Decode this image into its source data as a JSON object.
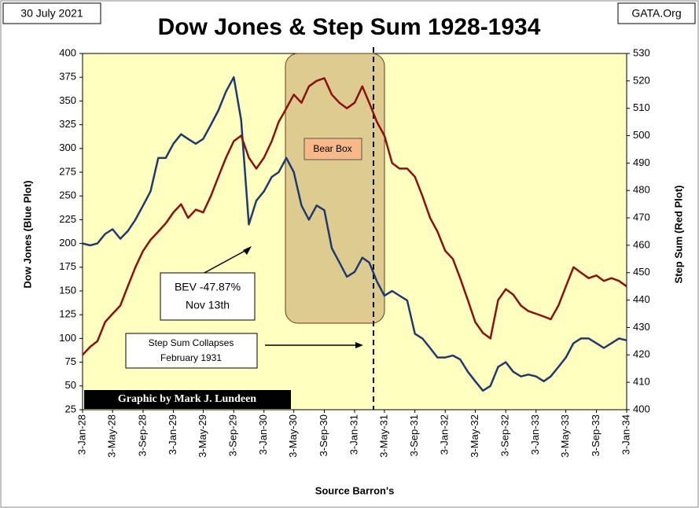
{
  "date_label": "30 July 2021",
  "source_site": "GATA.Org",
  "chart_data": {
    "type": "line",
    "title": "Dow Jones & Step Sum 1928-1934",
    "ylabel": "Dow Jones   (Blue Plot)",
    "y2label": "Step Sum   (Red Plot)",
    "xlabel": "Source Barron's",
    "credit": "Graphic by Mark J. Lundeen",
    "annotations": {
      "box": "Bear Box",
      "bev": "BEV -47.87%",
      "bev_date": "Nov 13th",
      "collapse": "Step Sum Collapses",
      "collapse_date": "February 1931"
    },
    "xlim": [
      "1928-01-03",
      "1934-01-03"
    ],
    "xticks": [
      {
        "value": "1928-01-03",
        "label": "3-Jan-28"
      },
      {
        "value": "1928-05-03",
        "label": "3-May-28"
      },
      {
        "value": "1928-09-03",
        "label": "3-Sep-28"
      },
      {
        "value": "1929-01-03",
        "label": "3-Jan-29"
      },
      {
        "value": "1929-05-03",
        "label": "3-May-29"
      },
      {
        "value": "1929-09-03",
        "label": "3-Sep-29"
      },
      {
        "value": "1930-01-03",
        "label": "3-Jan-30"
      },
      {
        "value": "1930-05-03",
        "label": "3-May-30"
      },
      {
        "value": "1930-09-03",
        "label": "3-Sep-30"
      },
      {
        "value": "1931-01-03",
        "label": "3-Jan-31"
      },
      {
        "value": "1931-05-03",
        "label": "3-May-31"
      },
      {
        "value": "1931-09-03",
        "label": "3-Sep-31"
      },
      {
        "value": "1932-01-03",
        "label": "3-Jan-32"
      },
      {
        "value": "1932-05-03",
        "label": "3-May-32"
      },
      {
        "value": "1932-09-03",
        "label": "3-Sep-32"
      },
      {
        "value": "1933-01-03",
        "label": "3-Jan-33"
      },
      {
        "value": "1933-05-03",
        "label": "3-May-33"
      },
      {
        "value": "1933-09-03",
        "label": "3-Sep-33"
      },
      {
        "value": "1934-01-03",
        "label": "3-Jan-34"
      }
    ],
    "ylim": [
      25,
      400
    ],
    "yticks": [
      25,
      50,
      75,
      100,
      125,
      150,
      175,
      200,
      225,
      250,
      275,
      300,
      325,
      350,
      375,
      400
    ],
    "y2lim": [
      400,
      530
    ],
    "y2ticks": [
      400,
      410,
      420,
      430,
      440,
      450,
      460,
      470,
      480,
      490,
      500,
      510,
      520,
      530
    ],
    "x": [
      "1928-01-03",
      "1928-02-03",
      "1928-03-03",
      "1928-04-03",
      "1928-05-03",
      "1928-06-03",
      "1928-07-03",
      "1928-08-03",
      "1928-09-03",
      "1928-10-03",
      "1928-11-03",
      "1928-12-03",
      "1929-01-03",
      "1929-02-03",
      "1929-03-03",
      "1929-04-03",
      "1929-05-03",
      "1929-06-03",
      "1929-07-03",
      "1929-08-03",
      "1929-09-03",
      "1929-10-03",
      "1929-11-03",
      "1929-12-03",
      "1930-01-03",
      "1930-02-03",
      "1930-03-03",
      "1930-04-03",
      "1930-05-03",
      "1930-06-03",
      "1930-07-03",
      "1930-08-03",
      "1930-09-03",
      "1930-10-03",
      "1930-11-03",
      "1930-12-03",
      "1931-01-03",
      "1931-02-03",
      "1931-03-03",
      "1931-04-03",
      "1931-05-03",
      "1931-06-03",
      "1931-07-03",
      "1931-08-03",
      "1931-09-03",
      "1931-10-03",
      "1931-11-03",
      "1931-12-03",
      "1932-01-03",
      "1932-02-03",
      "1932-03-03",
      "1932-04-03",
      "1932-05-03",
      "1932-06-03",
      "1932-07-03",
      "1932-08-03",
      "1932-09-03",
      "1932-10-03",
      "1932-11-03",
      "1932-12-03",
      "1933-01-03",
      "1933-02-03",
      "1933-03-03",
      "1933-04-03",
      "1933-05-03",
      "1933-06-03",
      "1933-07-03",
      "1933-08-03",
      "1933-09-03",
      "1933-10-03",
      "1933-11-03",
      "1933-12-03",
      "1934-01-03"
    ],
    "series": [
      {
        "name": "Dow Jones",
        "color": "#1f3a6e",
        "axis": "y",
        "values": [
          200,
          198,
          200,
          210,
          215,
          205,
          213,
          225,
          240,
          255,
          290,
          290,
          305,
          315,
          310,
          305,
          310,
          325,
          340,
          360,
          375,
          330,
          220,
          245,
          255,
          270,
          275,
          290,
          275,
          240,
          225,
          240,
          235,
          195,
          180,
          165,
          170,
          185,
          180,
          160,
          145,
          150,
          145,
          140,
          105,
          100,
          90,
          80,
          80,
          82,
          78,
          65,
          55,
          45,
          50,
          70,
          75,
          65,
          60,
          62,
          60,
          55,
          60,
          70,
          80,
          95,
          100,
          100,
          95,
          90,
          95,
          100,
          98
        ]
      },
      {
        "name": "Step Sum",
        "color": "#8b1010",
        "axis": "y2",
        "values": [
          420,
          423,
          425,
          432,
          435,
          438,
          445,
          452,
          458,
          462,
          465,
          468,
          472,
          475,
          470,
          473,
          472,
          478,
          485,
          492,
          498,
          500,
          492,
          488,
          492,
          498,
          505,
          510,
          515,
          512,
          518,
          520,
          521,
          515,
          512,
          510,
          512,
          518,
          512,
          505,
          500,
          490,
          488,
          488,
          485,
          478,
          470,
          465,
          458,
          455,
          448,
          440,
          432,
          428,
          426,
          440,
          444,
          442,
          438,
          436,
          435,
          434,
          433,
          438,
          445,
          452,
          450,
          448,
          449,
          447,
          448,
          447,
          445
        ]
      }
    ]
  }
}
